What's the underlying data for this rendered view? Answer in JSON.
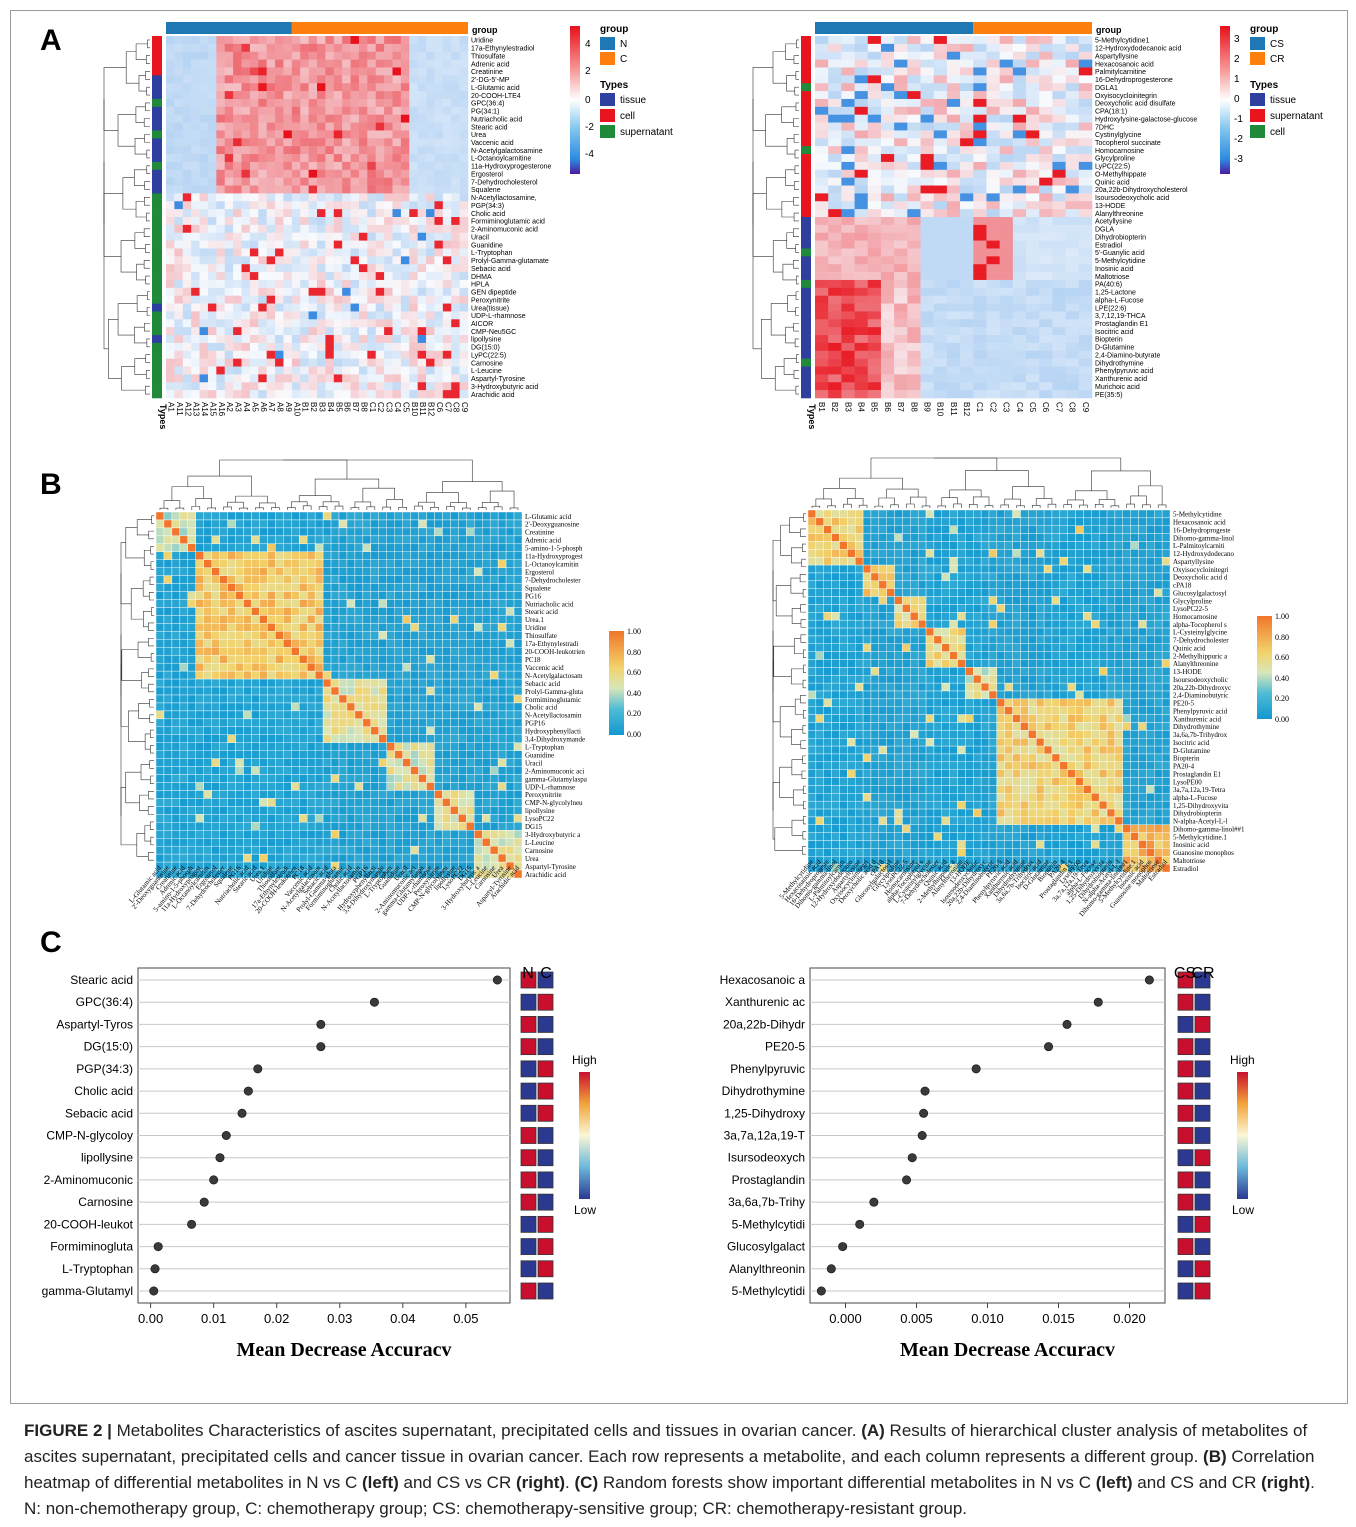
{
  "panel_labels": {
    "a": "A",
    "b": "B",
    "c": "C"
  },
  "colors": {
    "group_N": "#1f77b4",
    "group_C": "#ff7f0e",
    "group_CS": "#1f77b4",
    "group_CR": "#ff7f0e",
    "type_tissue": "#2e3fa0",
    "type_cell": "#e8141e",
    "type_supernatant": "#1e8a3a",
    "rf_red": "#c8102e",
    "rf_blue": "#2b3990"
  },
  "heatmap_left": {
    "group_header": "group",
    "types_label": "Types",
    "legend_group_title": "group",
    "legend_groups": [
      "N",
      "C"
    ],
    "legend_types_title": "Types",
    "legend_types": [
      "tissue",
      "cell",
      "supernatant"
    ],
    "scale_ticks": [
      "4",
      "2",
      "0",
      "-2",
      "-4"
    ],
    "rows": [
      "Uridine",
      "17a-Ethynylestradiol",
      "Thiosulfate",
      "Adrenic acid",
      "Creatinine",
      "2'-DG-5'-MP",
      "L-Glutamic acid",
      "20-COOH-LTE4",
      "GPC(36:4)",
      "PG(34:1)",
      "Nutriacholic acid",
      "Stearic acid",
      "Urea",
      "Vaccenic acid",
      "N-Acetylgalactosamine",
      "L-Octanoylcarnitine",
      "11a-Hydroxyprogesterone",
      "Ergosterol",
      "7-Dehydrocholesterol",
      "Squalene",
      "N-Acetyllactosamine,",
      "PGP(34:3)",
      "Cholic acid",
      "Formiminoglutamic acid",
      "2-Aminomuconic acid",
      "Uracil",
      "Guanidine",
      "L-Tryptophan",
      "Prolyl-Gamma-glutamate",
      "Sebacic acid",
      "DHMA",
      "HPLA",
      "GEN dipeptide",
      "Peroxynitrite",
      "Urea(tissue)",
      "UDP-L-rhamnose",
      "AICOR",
      "CMP-Neu5GC",
      "lipollysine",
      "DG(15:0)",
      "LyPC(22:5)",
      "Carnosine",
      "L-Leucine",
      "Aspartyl-Tyrosine",
      "3-Hydroxybutyric acid",
      "Arachidic acid"
    ],
    "cols": [
      "A1",
      "A11",
      "A12",
      "A13",
      "A14",
      "A15",
      "A16",
      "A2",
      "A3",
      "A4",
      "A5",
      "A6",
      "A7",
      "A8",
      "A9",
      "A10",
      "B1",
      "B2",
      "B3",
      "B4",
      "B5",
      "B6",
      "B7",
      "B8",
      "C1",
      "C2",
      "C3",
      "C4",
      "C5",
      "B10",
      "B11",
      "B12",
      "C6",
      "C7",
      "C8",
      "C9"
    ]
  },
  "heatmap_right": {
    "group_header": "group",
    "types_label": "Types",
    "legend_group_title": "group",
    "legend_groups": [
      "CS",
      "CR"
    ],
    "legend_types_title": "Types",
    "legend_types": [
      "tissue",
      "supernatant",
      "cell"
    ],
    "scale_ticks": [
      "3",
      "2",
      "1",
      "0",
      "-1",
      "-2",
      "-3"
    ],
    "rows": [
      "5-Methylcytidine1",
      "12-Hydroxydodecanoic acid",
      "Aspartyllysine",
      "Hexacosanoic acid",
      "Palmitylcarnitine",
      "16-Dehydroprogesterone",
      "DGLA1",
      "Oxyisocycloinitegrin",
      "Deoxycholic acid disulfate",
      "CPA(18:1)",
      "Hydroxylysine-galactose-glucose",
      "7DHC",
      "Cystinylglycine",
      "Tocopherol succinate",
      "Homocarnosine",
      "Glycylproline",
      "LyPC(22:5)",
      "O-Methylhippate",
      "Quinic acid",
      "20a,22b-Dihydroxycholesterol",
      "Isoursodeoxycholic acid",
      "13-HODE",
      "Alanylthreonine",
      "Acetyllysine",
      "DGLA",
      "Dihydrobiopterin",
      "Estradiol",
      "5'-Guanylic acid",
      "5-Methylcytidine",
      "Inosinic acid",
      "Maltotriose",
      "PA(40:6)",
      "1,25-Lactone",
      "alpha-L-Fucose",
      "LPE(22:6)",
      "3,7,12,19-THCA",
      "Prostaglandin E1",
      "Isocitric acid",
      "Biopterin",
      "D-Glutamine",
      "2,4-Diamino-butyrate",
      "Dihydrothymine",
      "Phenylpyruvic acid",
      "Xanthurenic acid",
      "Murichoic acid",
      "PE(35:5)"
    ],
    "cols": [
      "B1",
      "B2",
      "B3",
      "B4",
      "B5",
      "B6",
      "B7",
      "B8",
      "B9",
      "B10",
      "B11",
      "B12",
      "C1",
      "C2",
      "C3",
      "C4",
      "C5",
      "C6",
      "C7",
      "C8",
      "C9"
    ]
  },
  "corr_left": {
    "scale_ticks": [
      "1.00",
      "0.80",
      "0.60",
      "0.40",
      "0.20",
      "0.00"
    ],
    "labels": [
      "L-Glutamic acid",
      "2'-Deoxyguanosine",
      "Creatinine",
      "Adrenic acid",
      "5-amino-1-5-phosph",
      "11a-Hydroxyprogest",
      "L-Octanoylcarnitin",
      "Ergosterol",
      "7-Dehydrocholester",
      "Squalene",
      "PG16",
      "Nutriacholic acid",
      "Stearic acid",
      "Urea.1",
      "Uridine",
      "Thiosulfate",
      "17a-Ethynylestradi",
      "20-COOH-leukotrien",
      "PC18",
      "Vaccenic acid",
      "N-Acetylgalactosam",
      "Sebacic acid",
      "Prolyl-Gamma-gluta",
      "Formiminoglutamic",
      "Cholic acid",
      "N-Acetyllactosamin",
      "PGP16",
      "Hydroxyphenyllacti",
      "3,4-Dihydroxymande",
      "L-Tryptophan",
      "Guanidine",
      "Uracil",
      "2-Aminomuconic aci",
      "gamma-Glutamylaspa",
      "UDP-L-rhamnose",
      "Peroxynitrite",
      "CMP-N-glycolylneu",
      "lipollysine",
      "LysoPC22",
      "DG15",
      "3-Hydroxybutyric a",
      "L-Leucine",
      "Carnosine",
      "Urea",
      "Aspartyl-Tyrosine",
      "Arachidic acid"
    ]
  },
  "corr_right": {
    "scale_ticks": [
      "1.00",
      "0.80",
      "0.60",
      "0.40",
      "0.20",
      "0.00"
    ],
    "labels": [
      "5-Methylcytidine",
      "Hexacosanoic acid",
      "16-Dehydroprogeste",
      "Dihomo-gamma-linol",
      "L-Palmitoylcarniti",
      "12-Hydroxydodecano",
      "Aspartyllysine",
      "Oxyisocycloinitegri",
      "Deoxycholic acid d",
      "cPA18",
      "Glucosylgalactosyl",
      "Glycylproline",
      "LysoPC22-5",
      "Homocarnosine",
      "alpha-Tocopherol s",
      "L-Cysteinylglycine",
      "7-Dehydrocholester",
      "Quinic acid",
      "2-Methylhippuric a",
      "Alanylthreonine",
      "13-HODE",
      "Isoursodeoxycholic",
      "20a,22b-Dihydroxyc",
      "2,4-Diaminobutyric",
      "PE20-5",
      "Phenylpyruvic acid",
      "Xanthurenic acid",
      "Dihydrothymine",
      "3a,6a,7b-Trihydrox",
      "Isocitric acid",
      "D-Glutamine",
      "Biopterin",
      "PA20-4",
      "Prostaglandin E1",
      "LysoPE00",
      "3a,7a,12a,19-Tetra",
      "alpha-L-Fucose",
      "1,25-Dihydroxyvita",
      "Dihydrobiopterin",
      "N-alpha-Acetyl-L-l",
      "Dihomo-gamma-linol##1",
      "5-Methylcytidine.1",
      "Inosinic acid",
      "Guanosine monophos",
      "Maltotriose",
      "Estradiol"
    ]
  },
  "rf_left": {
    "xlabel": "Mean Decrease Accuracv",
    "legend_cols": [
      "N",
      "C"
    ],
    "legend_high": "High",
    "legend_low": "Low",
    "xticks": [
      "0.00",
      "0.01",
      "0.02",
      "0.03",
      "0.04",
      "0.05"
    ]
  },
  "rf_right": {
    "xlabel": "Mean Decrease Accuracv",
    "legend_cols": [
      "CS",
      "CR"
    ],
    "legend_high": "High",
    "legend_low": "Low",
    "xticks": [
      "0.000",
      "0.005",
      "0.010",
      "0.015",
      "0.020"
    ]
  },
  "chart_data": [
    {
      "type": "scatter",
      "panel": "C-left",
      "xlabel": "Mean Decrease Accuracv",
      "xlim": [
        -0.002,
        0.057
      ],
      "categories": [
        "Stearic acid",
        "GPC(36:4)",
        "Aspartyl-Tyros",
        "DG(15:0)",
        "PGP(34:3)",
        "Cholic acid",
        "Sebacic acid",
        "CMP-N-glycoloy",
        "lipollysine",
        "2-Aminomuconic",
        "Carnosine",
        "20-COOH-leukot",
        "Formiminogluta",
        "L-Tryptophan",
        "gamma-Glutamyl"
      ],
      "values": [
        0.055,
        0.0355,
        0.027,
        0.027,
        0.017,
        0.0155,
        0.0145,
        0.012,
        0.011,
        0.01,
        0.0085,
        0.0065,
        0.0012,
        0.0007,
        0.0005
      ],
      "high_group": [
        "N",
        "C",
        "N",
        "N",
        "C",
        "C",
        "C",
        "N",
        "N",
        "N",
        "N",
        "C",
        "C",
        "C",
        "N"
      ]
    },
    {
      "type": "scatter",
      "panel": "C-right",
      "xlabel": "Mean Decrease Accuracv",
      "xlim": [
        -0.0025,
        0.0225
      ],
      "categories": [
        "Hexacosanoic a",
        "Xanthurenic ac",
        "20a,22b-Dihydr",
        "PE20-5",
        "Phenylpyruvic",
        "Dihydrothymine",
        "1,25-Dihydroxy",
        "3a,7a,12a,19-T",
        "Isursodeoxych",
        "Prostaglandin",
        "3a,6a,7b-Trihy",
        "5-Methylcytidi",
        "Glucosylgalact",
        "Alanylthreonin",
        "5-Methylcytidi"
      ],
      "values": [
        0.0214,
        0.0178,
        0.0156,
        0.0143,
        0.0092,
        0.0056,
        0.0055,
        0.0054,
        0.0047,
        0.0043,
        0.002,
        0.001,
        -0.0002,
        -0.001,
        -0.0017
      ],
      "high_group": [
        "CS",
        "CS",
        "CR",
        "CS",
        "CS",
        "CS",
        "CS",
        "CS",
        "CR",
        "CS",
        "CS",
        "CR",
        "CS",
        "CR",
        "CR"
      ]
    }
  ],
  "caption": {
    "fig_label": "FIGURE 2 |",
    "title": " Metabolites Characteristics of ascites supernatant, precipitated cells and tissues in ovarian cancer. ",
    "a_label": "(A)",
    "a_text": " Results of hierarchical cluster analysis of metabolites of ascites supernatant, precipitated cells and cancer tissue in ovarian cancer. Each row represents a metabolite, and each column represents a different group. ",
    "b_label": "(B)",
    "b_text": " Correlation heatmap of differential metabolites in N vs C ",
    "b_left": "(left)",
    "b_mid": " and CS vs CR ",
    "b_right": "(right)",
    "b_end": ". ",
    "c_label": "(C)",
    "c_text": " Random forests show important differential metabolites in N vs C ",
    "c_left": "(left)",
    "c_mid": " and CS and CR ",
    "c_right": "(right)",
    "c_end": ". N: non-chemotherapy group, C: chemotherapy group; CS: chemotherapy-sensitive group; CR: chemotherapy-resistant group."
  }
}
